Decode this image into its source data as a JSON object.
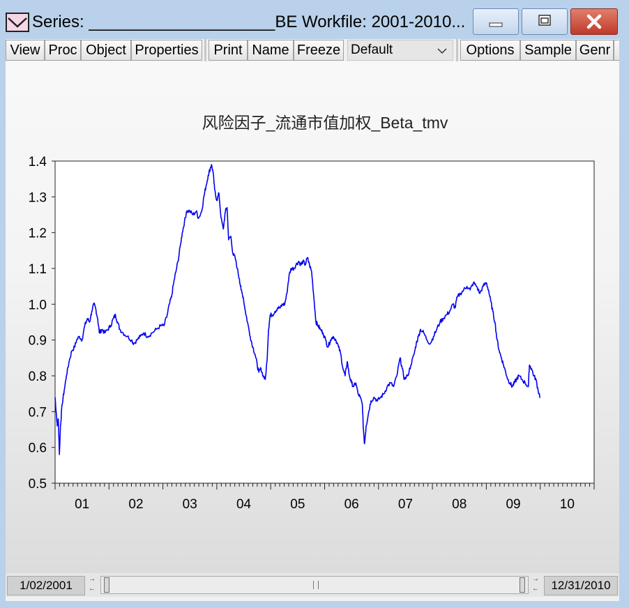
{
  "window": {
    "title": "Series: ____________________BE   Workfile: 2001-2010..."
  },
  "toolbar": {
    "buttons": [
      "View",
      "Proc",
      "Object",
      "Properties",
      "Print",
      "Name",
      "Freeze"
    ],
    "view_select": "Default",
    "right_buttons": [
      "Options",
      "Sample",
      "Genr"
    ]
  },
  "statusbar": {
    "start": "1/02/2001",
    "end": "12/31/2010"
  },
  "chart_data": {
    "type": "line",
    "title": "风险因子_流通市值加权_Beta_tmv",
    "xlabel": "",
    "ylabel": "",
    "ylim": [
      0.5,
      1.4
    ],
    "yticks": [
      "0.5",
      "0.6",
      "0.7",
      "0.8",
      "0.9",
      "1.0",
      "1.1",
      "1.2",
      "1.3",
      "1.4"
    ],
    "xticks": [
      "01",
      "02",
      "03",
      "04",
      "05",
      "06",
      "07",
      "08",
      "09",
      "10"
    ],
    "xrange": [
      "2001-01-02",
      "2010-12-31"
    ],
    "color": "#0000ee",
    "grid": false,
    "series": [
      {
        "values": [
          [
            2001.0,
            0.74
          ],
          [
            2001.02,
            0.7
          ],
          [
            2001.04,
            0.66
          ],
          [
            2001.06,
            0.68
          ],
          [
            2001.08,
            0.58
          ],
          [
            2001.1,
            0.66
          ],
          [
            2001.13,
            0.72
          ],
          [
            2001.17,
            0.76
          ],
          [
            2001.21,
            0.8
          ],
          [
            2001.26,
            0.84
          ],
          [
            2001.31,
            0.87
          ],
          [
            2001.36,
            0.88
          ],
          [
            2001.4,
            0.9
          ],
          [
            2001.45,
            0.91
          ],
          [
            2001.5,
            0.9
          ],
          [
            2001.55,
            0.94
          ],
          [
            2001.6,
            0.96
          ],
          [
            2001.64,
            0.95
          ],
          [
            2001.68,
            0.98
          ],
          [
            2001.72,
            1.0
          ],
          [
            2001.75,
            0.99
          ],
          [
            2001.79,
            0.96
          ],
          [
            2001.82,
            0.92
          ],
          [
            2001.87,
            0.93
          ],
          [
            2001.92,
            0.92
          ],
          [
            2001.98,
            0.93
          ],
          [
            2002.03,
            0.94
          ],
          [
            2002.08,
            0.96
          ],
          [
            2002.12,
            0.97
          ],
          [
            2002.16,
            0.95
          ],
          [
            2002.2,
            0.93
          ],
          [
            2002.26,
            0.92
          ],
          [
            2002.34,
            0.91
          ],
          [
            2002.42,
            0.9
          ],
          [
            2002.46,
            0.89
          ],
          [
            2002.52,
            0.9
          ],
          [
            2002.58,
            0.91
          ],
          [
            2002.64,
            0.92
          ],
          [
            2002.72,
            0.91
          ],
          [
            2002.8,
            0.92
          ],
          [
            2002.88,
            0.93
          ],
          [
            2002.96,
            0.94
          ],
          [
            2003.02,
            0.94
          ],
          [
            2003.08,
            0.97
          ],
          [
            2003.12,
            1.0
          ],
          [
            2003.16,
            1.02
          ],
          [
            2003.2,
            1.06
          ],
          [
            2003.24,
            1.09
          ],
          [
            2003.28,
            1.12
          ],
          [
            2003.32,
            1.16
          ],
          [
            2003.36,
            1.2
          ],
          [
            2003.4,
            1.23
          ],
          [
            2003.44,
            1.26
          ],
          [
            2003.5,
            1.26
          ],
          [
            2003.56,
            1.25
          ],
          [
            2003.62,
            1.26
          ],
          [
            2003.66,
            1.24
          ],
          [
            2003.72,
            1.26
          ],
          [
            2003.76,
            1.3
          ],
          [
            2003.8,
            1.33
          ],
          [
            2003.84,
            1.36
          ],
          [
            2003.88,
            1.38
          ],
          [
            2003.9,
            1.39
          ],
          [
            2003.93,
            1.37
          ],
          [
            2003.96,
            1.32
          ],
          [
            2004.0,
            1.29
          ],
          [
            2004.04,
            1.31
          ],
          [
            2004.08,
            1.24
          ],
          [
            2004.12,
            1.21
          ],
          [
            2004.16,
            1.26
          ],
          [
            2004.19,
            1.27
          ],
          [
            2004.22,
            1.18
          ],
          [
            2004.26,
            1.19
          ],
          [
            2004.3,
            1.14
          ],
          [
            2004.34,
            1.13
          ],
          [
            2004.38,
            1.1
          ],
          [
            2004.42,
            1.07
          ],
          [
            2004.45,
            1.04
          ],
          [
            2004.49,
            1.02
          ],
          [
            2004.53,
            0.98
          ],
          [
            2004.57,
            0.95
          ],
          [
            2004.62,
            0.91
          ],
          [
            2004.67,
            0.88
          ],
          [
            2004.71,
            0.86
          ],
          [
            2004.75,
            0.83
          ],
          [
            2004.78,
            0.81
          ],
          [
            2004.82,
            0.82
          ],
          [
            2004.86,
            0.8
          ],
          [
            2004.9,
            0.79
          ],
          [
            2004.93,
            0.84
          ],
          [
            2004.96,
            0.93
          ],
          [
            2004.99,
            0.97
          ],
          [
            2005.03,
            0.97
          ],
          [
            2005.08,
            0.98
          ],
          [
            2005.13,
            0.99
          ],
          [
            2005.18,
            0.99
          ],
          [
            2005.22,
            1.0
          ],
          [
            2005.26,
            1.0
          ],
          [
            2005.3,
            1.03
          ],
          [
            2005.34,
            1.08
          ],
          [
            2005.38,
            1.1
          ],
          [
            2005.43,
            1.1
          ],
          [
            2005.47,
            1.11
          ],
          [
            2005.52,
            1.12
          ],
          [
            2005.56,
            1.11
          ],
          [
            2005.6,
            1.12
          ],
          [
            2005.64,
            1.11
          ],
          [
            2005.68,
            1.13
          ],
          [
            2005.72,
            1.11
          ],
          [
            2005.76,
            1.09
          ],
          [
            2005.8,
            1.02
          ],
          [
            2005.84,
            0.95
          ],
          [
            2005.88,
            0.94
          ],
          [
            2005.92,
            0.93
          ],
          [
            2005.97,
            0.92
          ],
          [
            2006.02,
            0.9
          ],
          [
            2006.06,
            0.88
          ],
          [
            2006.11,
            0.9
          ],
          [
            2006.16,
            0.91
          ],
          [
            2006.21,
            0.9
          ],
          [
            2006.26,
            0.88
          ],
          [
            2006.3,
            0.86
          ],
          [
            2006.34,
            0.82
          ],
          [
            2006.38,
            0.8
          ],
          [
            2006.42,
            0.84
          ],
          [
            2006.46,
            0.8
          ],
          [
            2006.5,
            0.78
          ],
          [
            2006.54,
            0.77
          ],
          [
            2006.58,
            0.78
          ],
          [
            2006.62,
            0.75
          ],
          [
            2006.66,
            0.74
          ],
          [
            2006.7,
            0.72
          ],
          [
            2006.72,
            0.65
          ],
          [
            2006.74,
            0.61
          ],
          [
            2006.77,
            0.66
          ],
          [
            2006.82,
            0.7
          ],
          [
            2006.86,
            0.73
          ],
          [
            2006.92,
            0.74
          ],
          [
            2006.98,
            0.73
          ],
          [
            2007.04,
            0.74
          ],
          [
            2007.1,
            0.75
          ],
          [
            2007.16,
            0.77
          ],
          [
            2007.22,
            0.78
          ],
          [
            2007.28,
            0.77
          ],
          [
            2007.34,
            0.8
          ],
          [
            2007.4,
            0.85
          ],
          [
            2007.44,
            0.82
          ],
          [
            2007.48,
            0.79
          ],
          [
            2007.54,
            0.8
          ],
          [
            2007.6,
            0.83
          ],
          [
            2007.66,
            0.86
          ],
          [
            2007.7,
            0.89
          ],
          [
            2007.74,
            0.91
          ],
          [
            2007.78,
            0.93
          ],
          [
            2007.84,
            0.92
          ],
          [
            2007.9,
            0.9
          ],
          [
            2007.96,
            0.89
          ],
          [
            2008.02,
            0.91
          ],
          [
            2008.08,
            0.93
          ],
          [
            2008.14,
            0.95
          ],
          [
            2008.2,
            0.96
          ],
          [
            2008.26,
            0.97
          ],
          [
            2008.32,
            0.98
          ],
          [
            2008.38,
            1.0
          ],
          [
            2008.42,
            0.99
          ],
          [
            2008.46,
            1.02
          ],
          [
            2008.52,
            1.03
          ],
          [
            2008.58,
            1.04
          ],
          [
            2008.64,
            1.05
          ],
          [
            2008.7,
            1.04
          ],
          [
            2008.76,
            1.06
          ],
          [
            2008.82,
            1.05
          ],
          [
            2008.88,
            1.03
          ],
          [
            2008.94,
            1.05
          ],
          [
            2009.0,
            1.06
          ],
          [
            2009.04,
            1.04
          ],
          [
            2009.08,
            1.01
          ],
          [
            2009.12,
            0.98
          ],
          [
            2009.16,
            0.95
          ],
          [
            2009.2,
            0.9
          ],
          [
            2009.24,
            0.87
          ],
          [
            2009.28,
            0.85
          ],
          [
            2009.32,
            0.83
          ],
          [
            2009.36,
            0.81
          ],
          [
            2009.4,
            0.79
          ],
          [
            2009.44,
            0.78
          ],
          [
            2009.48,
            0.77
          ],
          [
            2009.52,
            0.78
          ],
          [
            2009.56,
            0.79
          ],
          [
            2009.6,
            0.8
          ],
          [
            2009.66,
            0.79
          ],
          [
            2009.72,
            0.78
          ],
          [
            2009.78,
            0.77
          ],
          [
            2009.8,
            0.83
          ],
          [
            2009.84,
            0.82
          ],
          [
            2009.88,
            0.8
          ],
          [
            2009.92,
            0.79
          ],
          [
            2009.96,
            0.76
          ],
          [
            2010.0,
            0.74
          ]
        ]
      }
    ]
  }
}
